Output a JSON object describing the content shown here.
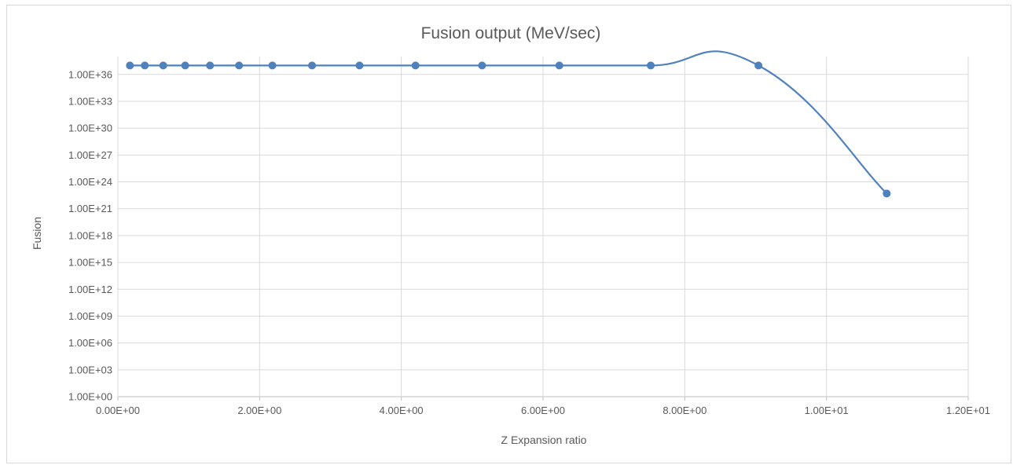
{
  "chart_data": {
    "type": "scatter",
    "title": "Fusion output (MeV/sec)",
    "xlabel": "Z Expansion ratio",
    "ylabel": "Fusion",
    "y_scale": "log10",
    "xlim": [
      0,
      12
    ],
    "ylim_exponent": [
      0,
      38
    ],
    "x_ticks": [
      "0.00E+00",
      "2.00E+00",
      "4.00E+00",
      "6.00E+00",
      "8.00E+00",
      "1.00E+01",
      "1.20E+01"
    ],
    "y_ticks": [
      "1.00E+00",
      "1.00E+03",
      "1.00E+06",
      "1.00E+09",
      "1.00E+12",
      "1.00E+15",
      "1.00E+18",
      "1.00E+21",
      "1.00E+24",
      "1.00E+27",
      "1.00E+30",
      "1.00E+33",
      "1.00E+36"
    ],
    "grid": true,
    "line_smoothed": true,
    "series": [
      {
        "color": "#4f81bd",
        "x": [
          0.17,
          0.38,
          0.64,
          0.95,
          1.3,
          1.71,
          2.18,
          2.74,
          3.41,
          4.2,
          5.14,
          6.23,
          7.52,
          9.04,
          10.85
        ],
        "y_exponent": [
          37.0,
          37.0,
          37.0,
          37.0,
          37.0,
          37.0,
          37.0,
          37.0,
          37.0,
          37.0,
          37.0,
          37.0,
          37.0,
          37.0,
          22.7
        ]
      }
    ]
  }
}
